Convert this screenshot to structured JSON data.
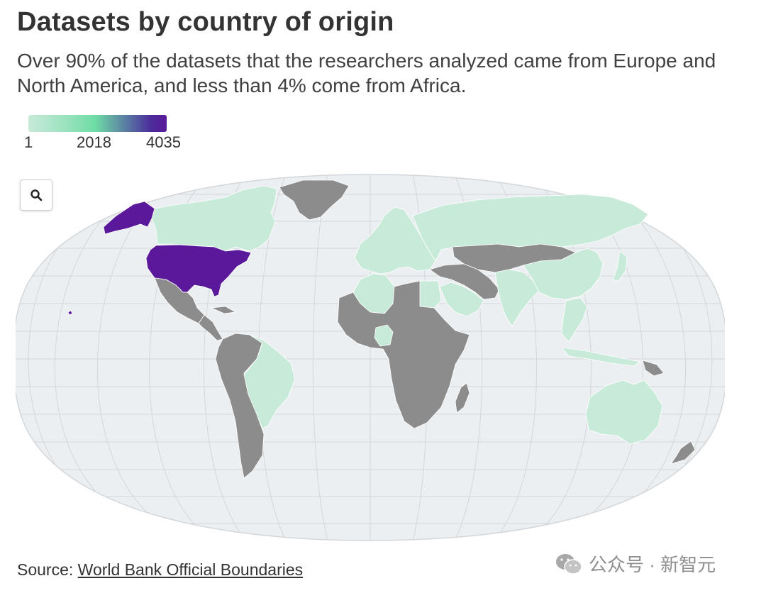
{
  "title": "Datasets by country of origin",
  "subtitle": "Over 90% of the datasets that the researchers analyzed came from Europe and North America, and less than 4% come from Africa.",
  "legend": {
    "min_label": "1",
    "mid_label": "2018",
    "max_label": "4035",
    "min_color": "#c8ead9",
    "mid_color": "#6fdca5",
    "max_color": "#5a189a"
  },
  "zoom_button": {
    "icon": "search-icon"
  },
  "map": {
    "projection": "Equal Earth",
    "ocean_color": "#eceff1",
    "graticule_color": "#d4d7da",
    "no_data_color": "#8c8c8c",
    "regions": [
      {
        "name": "United States (contiguous)",
        "category": "max"
      },
      {
        "name": "Alaska",
        "category": "max"
      },
      {
        "name": "Canada",
        "category": "low"
      },
      {
        "name": "Greenland",
        "category": "no-data"
      },
      {
        "name": "Mexico",
        "category": "no-data"
      },
      {
        "name": "Central America",
        "category": "no-data"
      },
      {
        "name": "Brazil",
        "category": "low"
      },
      {
        "name": "Rest of South America",
        "category": "no-data"
      },
      {
        "name": "Europe",
        "category": "low"
      },
      {
        "name": "Russia",
        "category": "low"
      },
      {
        "name": "Central Asia",
        "category": "no-data"
      },
      {
        "name": "Middle East",
        "category": "no-data"
      },
      {
        "name": "Saudi Arabia",
        "category": "low"
      },
      {
        "name": "India",
        "category": "low"
      },
      {
        "name": "China",
        "category": "low"
      },
      {
        "name": "Southeast Asia",
        "category": "low"
      },
      {
        "name": "Japan",
        "category": "low"
      },
      {
        "name": "North Africa (Algeria/Tunisia/Egypt)",
        "category": "low"
      },
      {
        "name": "Nigeria",
        "category": "low"
      },
      {
        "name": "Rest of Africa",
        "category": "no-data"
      },
      {
        "name": "Madagascar",
        "category": "no-data"
      },
      {
        "name": "Australia",
        "category": "low"
      },
      {
        "name": "New Zealand",
        "category": "no-data"
      },
      {
        "name": "Papua New Guinea",
        "category": "no-data"
      }
    ]
  },
  "source": {
    "prefix": "Source: ",
    "link_text": "World Bank Official Boundaries"
  },
  "watermark": {
    "icon": "wechat-icon",
    "text": "公众号 · 新智元"
  }
}
